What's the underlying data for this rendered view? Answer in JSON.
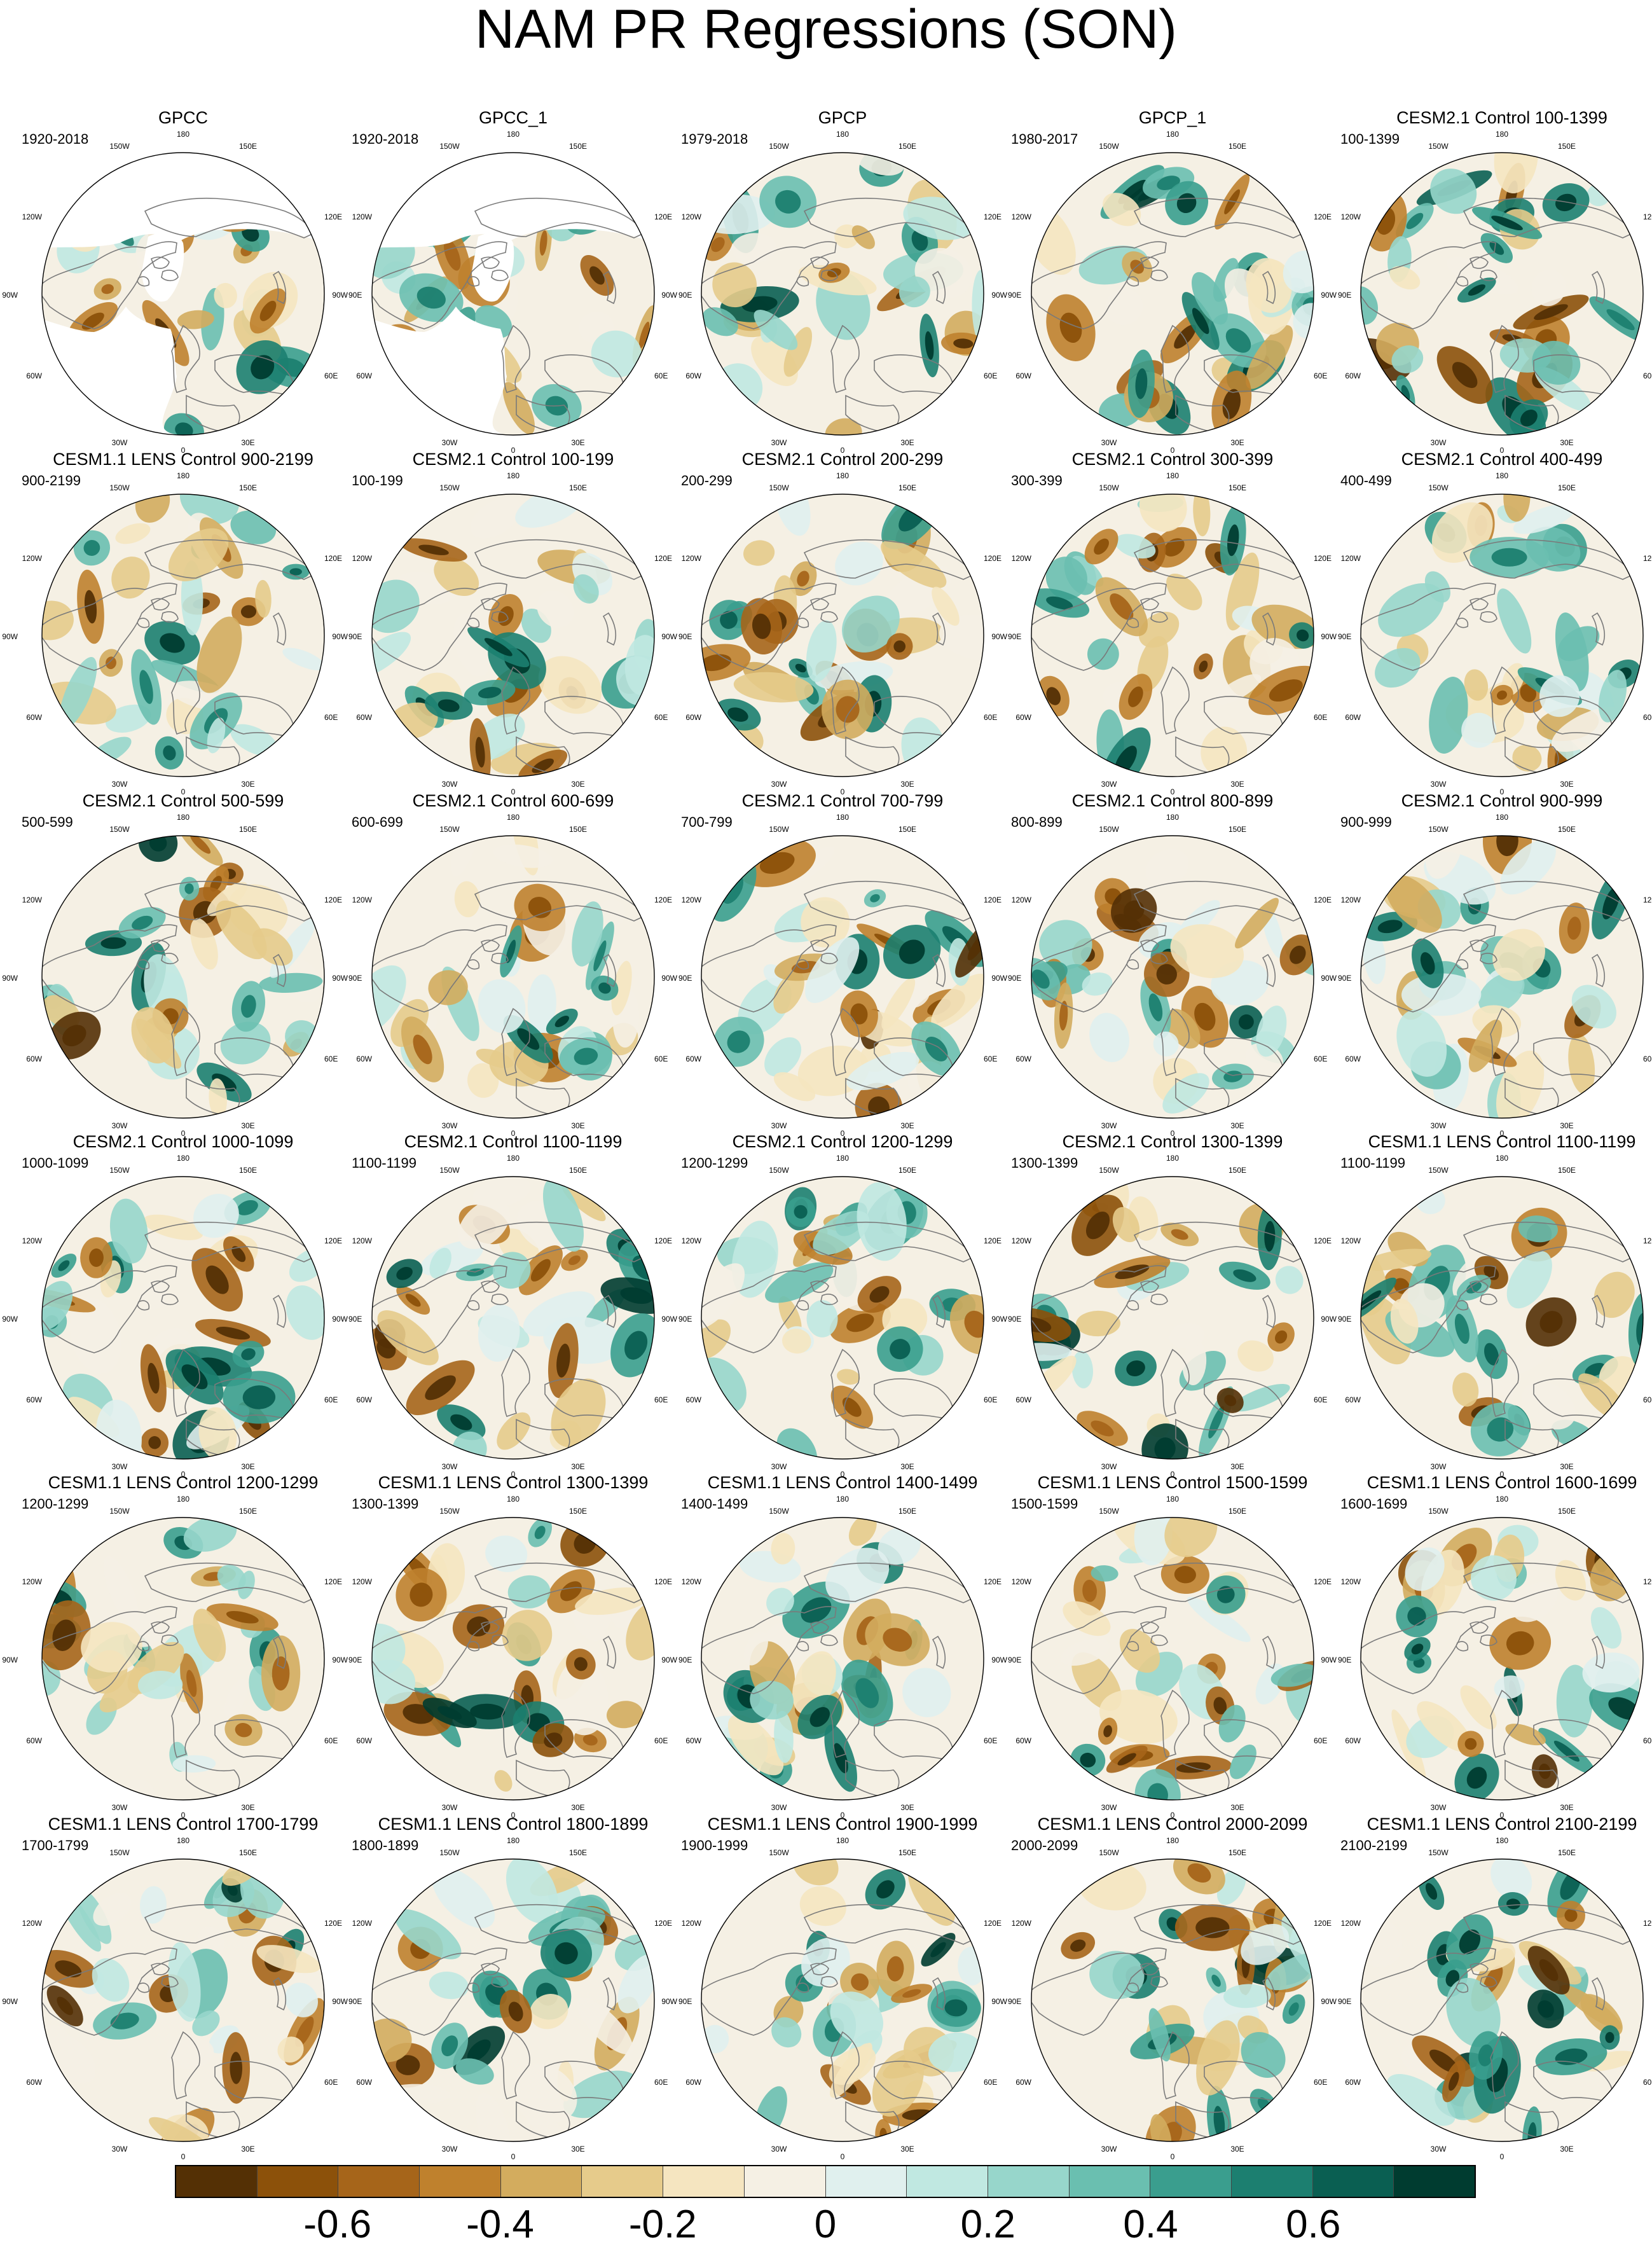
{
  "figure": {
    "title": "NAM PR Regressions (SON)",
    "map_labels": {
      "top": "180",
      "bottom": "0",
      "left": "90W",
      "right": "90E",
      "upper_left": "150W",
      "upper_right": "150E",
      "mid_upper_left": "120W",
      "mid_upper_right": "120E",
      "mid_lower_left": "60W",
      "mid_lower_right": "60E",
      "lower_left": "30W",
      "lower_right": "30E"
    },
    "panels": [
      {
        "title": "GPCC",
        "period": "1920-2018",
        "masked": true
      },
      {
        "title": "GPCC_1",
        "period": "1920-2018",
        "masked": true
      },
      {
        "title": "GPCP",
        "period": "1979-2018",
        "masked": false
      },
      {
        "title": "GPCP_1",
        "period": "1980-2017",
        "masked": false
      },
      {
        "title": "CESM2.1 Control 100-1399",
        "period": "100-1399",
        "masked": false
      },
      {
        "title": "CESM1.1 LENS Control 900-2199",
        "period": "900-2199",
        "masked": false
      },
      {
        "title": "CESM2.1 Control 100-199",
        "period": "100-199",
        "masked": false
      },
      {
        "title": "CESM2.1 Control 200-299",
        "period": "200-299",
        "masked": false
      },
      {
        "title": "CESM2.1 Control 300-399",
        "period": "300-399",
        "masked": false
      },
      {
        "title": "CESM2.1 Control 400-499",
        "period": "400-499",
        "masked": false
      },
      {
        "title": "CESM2.1 Control 500-599",
        "period": "500-599",
        "masked": false
      },
      {
        "title": "CESM2.1 Control 600-699",
        "period": "600-699",
        "masked": false
      },
      {
        "title": "CESM2.1 Control 700-799",
        "period": "700-799",
        "masked": false
      },
      {
        "title": "CESM2.1 Control 800-899",
        "period": "800-899",
        "masked": false
      },
      {
        "title": "CESM2.1 Control 900-999",
        "period": "900-999",
        "masked": false
      },
      {
        "title": "CESM2.1 Control 1000-1099",
        "period": "1000-1099",
        "masked": false
      },
      {
        "title": "CESM2.1 Control 1100-1199",
        "period": "1100-1199",
        "masked": false
      },
      {
        "title": "CESM2.1 Control 1200-1299",
        "period": "1200-1299",
        "masked": false
      },
      {
        "title": "CESM2.1 Control 1300-1399",
        "period": "1300-1399",
        "masked": false
      },
      {
        "title": "CESM1.1 LENS Control 1100-1199",
        "period": "1100-1199",
        "masked": false
      },
      {
        "title": "CESM1.1 LENS Control 1200-1299",
        "period": "1200-1299",
        "masked": false
      },
      {
        "title": "CESM1.1 LENS Control 1300-1399",
        "period": "1300-1399",
        "masked": false
      },
      {
        "title": "CESM1.1 LENS Control 1400-1499",
        "period": "1400-1499",
        "masked": false
      },
      {
        "title": "CESM1.1 LENS Control 1500-1599",
        "period": "1500-1599",
        "masked": false
      },
      {
        "title": "CESM1.1 LENS Control 1600-1699",
        "period": "1600-1699",
        "masked": false
      },
      {
        "title": "CESM1.1 LENS Control 1700-1799",
        "period": "1700-1799",
        "masked": false
      },
      {
        "title": "CESM1.1 LENS Control 1800-1899",
        "period": "1800-1899",
        "masked": false
      },
      {
        "title": "CESM1.1 LENS Control 1900-1999",
        "period": "1900-1999",
        "masked": false
      },
      {
        "title": "CESM1.1 LENS Control 2000-2099",
        "period": "2000-2099",
        "masked": false
      },
      {
        "title": "CESM1.1 LENS Control 2100-2199",
        "period": "2100-2199",
        "masked": false
      }
    ]
  },
  "colorbar": {
    "colors": [
      "#543005",
      "#8c510a",
      "#a6651a",
      "#bf812d",
      "#d3ac5e",
      "#e6cb8b",
      "#f5e5c0",
      "#f5f0e4",
      "#e0f0ee",
      "#c0e8e1",
      "#97d6cb",
      "#6abfb0",
      "#3a9e8e",
      "#1c7f70",
      "#0a5f52",
      "#003c30"
    ],
    "ticks": [
      {
        "value": -0.6,
        "label": "-0.6"
      },
      {
        "value": -0.4,
        "label": "-0.4"
      },
      {
        "value": -0.2,
        "label": "-0.2"
      },
      {
        "value": 0,
        "label": "0"
      },
      {
        "value": 0.2,
        "label": "0.2"
      },
      {
        "value": 0.4,
        "label": "0.4"
      },
      {
        "value": 0.6,
        "label": "0.6"
      }
    ],
    "min": -0.8,
    "max": 0.8
  }
}
